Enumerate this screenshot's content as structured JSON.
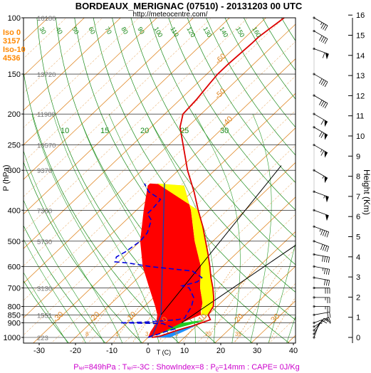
{
  "header": {
    "title": "BORDEAUX_MERIGNAC (07510) - 20131203 00 UTC",
    "url": "http://meteocentre.com/"
  },
  "indices": [
    {
      "label": "Iso 0",
      "value": "3157"
    },
    {
      "label": "Iso-10",
      "value": "4536"
    }
  ],
  "footer": {
    "text": "Pₗₑₗ=849hPa : Tₗₑₗ=-3C : ShowIndex=8 : Pᵨ=14mm : CAPE= 0J/Kg"
  },
  "colors": {
    "temp": "#dd0000",
    "dew": "#0000dd",
    "isotherm": "#e08a2a",
    "dry_adiabat": "#1a8a1a",
    "cape_red": "#ff0000",
    "cape_yellow": "#ffff00",
    "blue_fill": "#1e90ff",
    "green_fill": "#22cc22",
    "indices_color": "#ff8800",
    "footer_color": "#cc00cc"
  },
  "chart_data": {
    "type": "line",
    "xlabel": "T (C)",
    "ylabel": "P (hPa)",
    "y2label": "Height (Km)",
    "xlim": [
      -35,
      47
    ],
    "ylim": [
      1050,
      100
    ],
    "x_ticks": [
      -30,
      -20,
      -10,
      0,
      10,
      20,
      30,
      40
    ],
    "y_ticks": [
      1000,
      900,
      850,
      800,
      700,
      600,
      500,
      400,
      300,
      250,
      200,
      150,
      100
    ],
    "height_ticks": [
      0,
      1,
      2,
      3,
      4,
      5,
      6,
      7,
      8,
      9,
      10,
      11,
      12,
      13,
      14,
      15,
      16
    ],
    "height_labels": [
      {
        "p": 100,
        "h": "16180"
      },
      {
        "p": 150,
        "h": "13720"
      },
      {
        "p": 200,
        "h": "11980"
      },
      {
        "p": 250,
        "h": "10570"
      },
      {
        "p": 300,
        "h": "9370"
      },
      {
        "p": 400,
        "h": "7380"
      },
      {
        "p": 500,
        "h": "5730"
      },
      {
        "p": 700,
        "h": "3130"
      },
      {
        "p": 850,
        "h": "1551"
      },
      {
        "p": 1000,
        "h": "223"
      }
    ],
    "series": [
      {
        "name": "Temperature",
        "points": [
          [
            1000,
            1.0
          ],
          [
            990,
            3.0
          ],
          [
            950,
            6.0
          ],
          [
            925,
            8.5
          ],
          [
            900,
            10.5
          ],
          [
            880,
            12.0
          ],
          [
            850,
            10.0
          ],
          [
            800,
            9.0
          ],
          [
            750,
            6.5
          ],
          [
            700,
            3.5
          ],
          [
            650,
            0.0
          ],
          [
            600,
            -3.5
          ],
          [
            550,
            -7.5
          ],
          [
            500,
            -12.0
          ],
          [
            450,
            -17.0
          ],
          [
            400,
            -23.0
          ],
          [
            350,
            -29.5
          ],
          [
            300,
            -37.5
          ],
          [
            250,
            -46.0
          ],
          [
            220,
            -52.0
          ],
          [
            200,
            -55.0
          ],
          [
            180,
            -55.5
          ],
          [
            160,
            -56.5
          ],
          [
            150,
            -57.0
          ],
          [
            140,
            -57.0
          ],
          [
            120,
            -56.5
          ],
          [
            115,
            -56.5
          ],
          [
            105,
            -55.5
          ],
          [
            100,
            -55.0
          ]
        ]
      },
      {
        "name": "Dew point",
        "points": [
          [
            1000,
            0.0
          ],
          [
            990,
            0.5
          ],
          [
            975,
            2.0
          ],
          [
            960,
            3.0
          ],
          [
            940,
            5.0
          ],
          [
            925,
            3.0
          ],
          [
            905,
            0.0
          ],
          [
            900,
            -12.0
          ],
          [
            895,
            -5.0
          ],
          [
            880,
            3.0
          ],
          [
            870,
            4.5
          ],
          [
            850,
            4.0
          ],
          [
            800,
            3.0
          ],
          [
            750,
            1.0
          ],
          [
            700,
            -3.0
          ],
          [
            690,
            -5.5
          ],
          [
            670,
            -2.5
          ],
          [
            650,
            -2.5
          ],
          [
            620,
            -7.0
          ],
          [
            600,
            -20.0
          ],
          [
            585,
            -27.0
          ],
          [
            580,
            -31.0
          ],
          [
            560,
            -32.0
          ],
          [
            540,
            -31.0
          ],
          [
            500,
            -30.0
          ],
          [
            470,
            -30.5
          ],
          [
            430,
            -33.0
          ],
          [
            410,
            -36.0
          ],
          [
            395,
            -36.0
          ],
          [
            370,
            -36.5
          ],
          [
            350,
            -42.0
          ],
          [
            330,
            -45.5
          ]
        ]
      }
    ],
    "parcel": {
      "name": "Parcel",
      "color": "#1e3aa8"
    },
    "isotherm_labels": [
      -60,
      -50,
      -40,
      -30,
      -20,
      -10,
      0,
      10,
      20,
      30
    ],
    "dry_adiabat_labels": [
      30,
      40,
      50,
      60,
      70,
      80,
      90,
      100,
      110,
      120,
      130,
      140,
      150,
      160
    ],
    "mixing_ratio_labels": [
      "8",
      "1",
      "3",
      "5",
      "20",
      "35"
    ],
    "wind_barbs": [
      {
        "p": 1000,
        "dir": 200,
        "spd": 5
      },
      {
        "p": 975,
        "dir": 210,
        "spd": 10
      },
      {
        "p": 950,
        "dir": 220,
        "spd": 10
      },
      {
        "p": 925,
        "dir": 240,
        "spd": 10
      },
      {
        "p": 900,
        "dir": 250,
        "spd": 15
      },
      {
        "p": 850,
        "dir": 260,
        "spd": 20
      },
      {
        "p": 800,
        "dir": 270,
        "spd": 25
      },
      {
        "p": 750,
        "dir": 270,
        "spd": 25
      },
      {
        "p": 700,
        "dir": 270,
        "spd": 30
      },
      {
        "p": 650,
        "dir": 280,
        "spd": 30
      },
      {
        "p": 600,
        "dir": 280,
        "spd": 35
      },
      {
        "p": 550,
        "dir": 280,
        "spd": 40
      },
      {
        "p": 500,
        "dir": 290,
        "spd": 40
      },
      {
        "p": 450,
        "dir": 290,
        "spd": 45
      },
      {
        "p": 400,
        "dir": 290,
        "spd": 50
      },
      {
        "p": 350,
        "dir": 290,
        "spd": 55
      },
      {
        "p": 300,
        "dir": 300,
        "spd": 55
      },
      {
        "p": 250,
        "dir": 300,
        "spd": 65
      },
      {
        "p": 220,
        "dir": 300,
        "spd": 70
      },
      {
        "p": 200,
        "dir": 300,
        "spd": 60
      },
      {
        "p": 175,
        "dir": 300,
        "spd": 40
      },
      {
        "p": 150,
        "dir": 300,
        "spd": 40
      },
      {
        "p": 125,
        "dir": 290,
        "spd": 60
      },
      {
        "p": 110,
        "dir": 300,
        "spd": 40
      },
      {
        "p": 100,
        "dir": 300,
        "spd": 35
      }
    ]
  }
}
